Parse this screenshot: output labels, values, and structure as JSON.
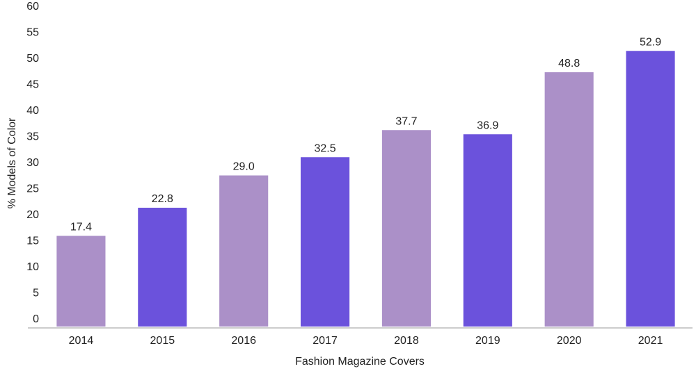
{
  "chart_data": {
    "type": "bar",
    "x_label": "Fashion Magazine Covers",
    "y_label": "% Models of Color",
    "categories": [
      "2014",
      "2015",
      "2016",
      "2017",
      "2018",
      "2019",
      "2020",
      "2021"
    ],
    "values": [
      17.4,
      22.8,
      29.0,
      32.5,
      37.7,
      36.9,
      48.8,
      52.9
    ],
    "value_labels": [
      "17.4",
      "22.8",
      "29.0",
      "32.5",
      "37.7",
      "36.9",
      "48.8",
      "52.9"
    ],
    "colors": [
      "#ab90c8",
      "#6b52dc",
      "#ab90c8",
      "#6b52dc",
      "#ab90c8",
      "#6b52dc",
      "#ab90c8",
      "#6b52dc"
    ],
    "ylim": [
      0,
      60
    ],
    "yticks": [
      0,
      5,
      10,
      15,
      20,
      25,
      30,
      35,
      40,
      45,
      50,
      55,
      60
    ],
    "grid": false
  }
}
